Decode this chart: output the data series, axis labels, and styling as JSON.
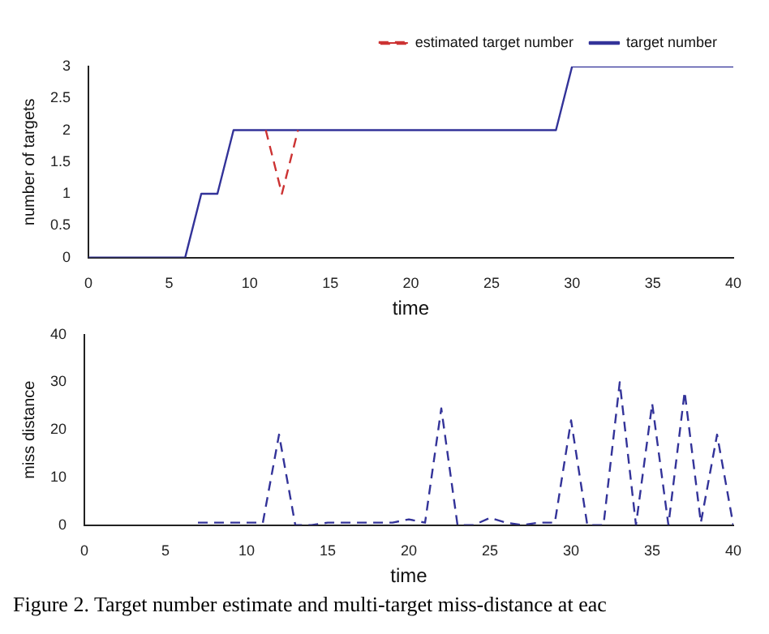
{
  "chart_data": [
    {
      "type": "line",
      "xlabel": "time",
      "ylabel": "number of targets",
      "xlim": [
        0,
        40
      ],
      "xticks": [
        0,
        5,
        10,
        15,
        20,
        25,
        30,
        35,
        40
      ],
      "ylim": [
        0,
        3
      ],
      "yticks": [
        0,
        0.5,
        1,
        1.5,
        2,
        2.5,
        3
      ],
      "grid": false,
      "legend": "top right",
      "marker": "none",
      "series": [
        {
          "name": "estimated target number",
          "color": "#cc3333",
          "line_style": "dashed",
          "x": [
            11,
            12,
            13
          ],
          "values": [
            2,
            1,
            2
          ]
        },
        {
          "name": "target number",
          "color": "#333399",
          "line_style": "solid",
          "x": [
            0,
            6,
            7,
            8,
            9,
            29,
            30,
            40
          ],
          "values": [
            0,
            0,
            1,
            1,
            2,
            2,
            3,
            3
          ]
        }
      ]
    },
    {
      "type": "line",
      "xlabel": "time",
      "ylabel": "miss distance",
      "xlim": [
        0,
        40
      ],
      "xticks": [
        0,
        5,
        10,
        15,
        20,
        25,
        30,
        35,
        40
      ],
      "ylim": [
        0,
        40
      ],
      "yticks": [
        0,
        10,
        20,
        30,
        40
      ],
      "grid": false,
      "legend": false,
      "marker": "none",
      "line_style": "dashed",
      "annotations": [
        "Figure 2. Target number estimate and multi-target miss-distance at eac"
      ],
      "series": [
        {
          "color": "#333399",
          "x": [
            7,
            8,
            9,
            10,
            11,
            12,
            13,
            14,
            15,
            16,
            17,
            18,
            19,
            20,
            21,
            22,
            23,
            24,
            25,
            26,
            27,
            28,
            29,
            30,
            31,
            32,
            33,
            34,
            35,
            36,
            37,
            38,
            39,
            40
          ],
          "values": [
            0.5,
            0.5,
            0.5,
            0.5,
            0.5,
            19,
            0,
            0,
            0.5,
            0.5,
            0.5,
            0.5,
            0.5,
            1.2,
            0.5,
            24.5,
            0,
            0,
            1.5,
            0.5,
            0,
            0.5,
            0.5,
            22,
            0,
            0,
            30,
            0,
            25.5,
            0,
            28,
            0.5,
            19,
            0
          ]
        }
      ]
    }
  ]
}
